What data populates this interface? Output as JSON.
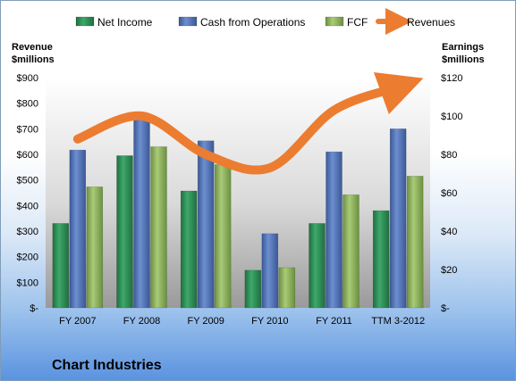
{
  "chart_data": {
    "type": "bar",
    "title": "Chart Industries",
    "categories": [
      "FY 2007",
      "FY 2008",
      "FY 2009",
      "FY 2010",
      "FY 2011",
      "TTM 3-2012"
    ],
    "y_left_label_lines": [
      "Revenue",
      "$millions"
    ],
    "y_right_label_lines": [
      "Earnings",
      "$millions"
    ],
    "y_left_range": [
      0,
      900
    ],
    "y_left_ticks": [
      "$-",
      "$100",
      "$200",
      "$300",
      "$400",
      "$500",
      "$600",
      "$700",
      "$800",
      "$900"
    ],
    "y_right_range": [
      0,
      120
    ],
    "y_right_ticks": [
      "$-",
      "$20",
      "$40",
      "$60",
      "$80",
      "$100",
      "$120"
    ],
    "grid": false,
    "legend_position": "top",
    "series": [
      {
        "name": "Net Income",
        "type": "bar",
        "axis": "left",
        "color": "#2e8b57",
        "values": [
          330,
          595,
          457,
          147,
          330,
          380
        ]
      },
      {
        "name": "Cash from Operations",
        "type": "bar",
        "axis": "left",
        "color": "#4f72b8",
        "values": [
          617,
          735,
          653,
          290,
          610,
          700
        ]
      },
      {
        "name": "FCF",
        "type": "bar",
        "axis": "left",
        "color": "#8db35a",
        "values": [
          473,
          630,
          560,
          157,
          442,
          515
        ]
      },
      {
        "name": "Revenues",
        "type": "line",
        "axis": "right",
        "color": "#ec7c30",
        "values": [
          88,
          100,
          80,
          73,
          103,
          115
        ]
      }
    ]
  }
}
